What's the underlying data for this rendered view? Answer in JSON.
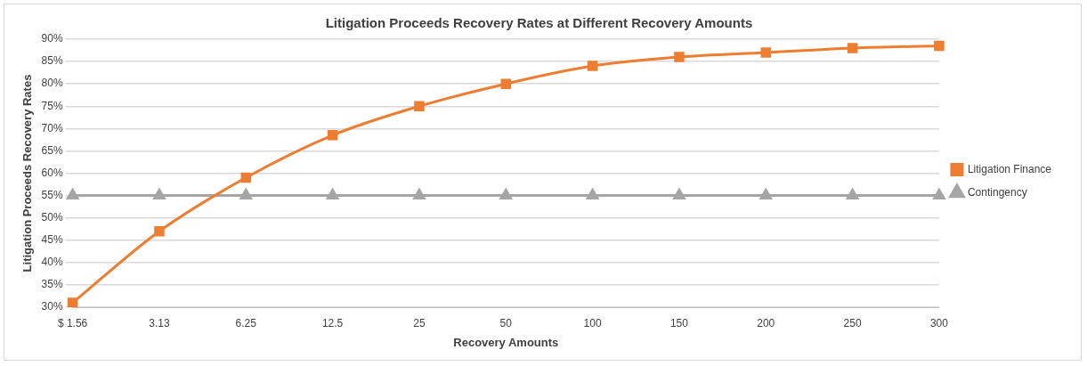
{
  "chart_data": {
    "type": "line",
    "title": "Litigation Proceeds Recovery Rates at Different Recovery Amounts",
    "xlabel": "Recovery Amounts",
    "ylabel": "Litigation Proceeds Recovery Rates",
    "categories": [
      "$ 1.56",
      "3.13",
      "6.25",
      "12.5",
      "25",
      "50",
      "100",
      "150",
      "200",
      "250",
      "300"
    ],
    "series": [
      {
        "name": "Litigation Finance",
        "color": "#ed7d31",
        "marker": "square",
        "values": [
          31,
          47,
          59,
          68.5,
          75,
          80,
          84,
          86,
          87,
          88,
          88.5
        ]
      },
      {
        "name": "Contingency",
        "color": "#a5a5a5",
        "marker": "triangle",
        "values": [
          55,
          55,
          55,
          55,
          55,
          55,
          55,
          55,
          55,
          55,
          55
        ]
      }
    ],
    "ylim": [
      30,
      90
    ],
    "yticks": [
      {
        "value": 30,
        "label": "30%"
      },
      {
        "value": 35,
        "label": "35%"
      },
      {
        "value": 40,
        "label": "40%"
      },
      {
        "value": 45,
        "label": "45%"
      },
      {
        "value": 50,
        "label": "50%"
      },
      {
        "value": 55,
        "label": "55%"
      },
      {
        "value": 60,
        "label": "60%"
      },
      {
        "value": 65,
        "label": "65%"
      },
      {
        "value": 70,
        "label": "70%"
      },
      {
        "value": 75,
        "label": "75%"
      },
      {
        "value": 80,
        "label": "80%"
      },
      {
        "value": 85,
        "label": "85%"
      },
      {
        "value": 90,
        "label": "90%"
      }
    ],
    "grid": "y",
    "legend": "right",
    "line_style": "solid"
  }
}
